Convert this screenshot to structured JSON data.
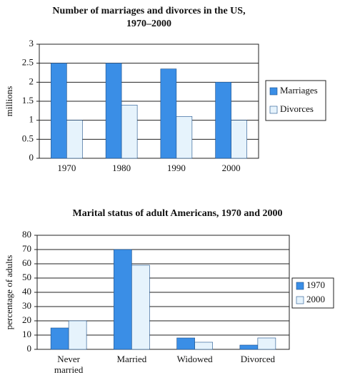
{
  "chart_data": [
    {
      "type": "bar",
      "title": [
        "Number of marriages and divorces in the US,",
        "1970–2000"
      ],
      "y_label": "millions",
      "categories": [
        "1970",
        "1980",
        "1990",
        "2000"
      ],
      "series": [
        {
          "name": "Marriages",
          "color": "#3a8ee6",
          "values": [
            2.5,
            2.5,
            2.35,
            2
          ]
        },
        {
          "name": "Divorces",
          "color": "#e6f3fc",
          "values": [
            1,
            1.4,
            1.1,
            1
          ]
        }
      ],
      "ylim": [
        0,
        3
      ],
      "yticks": [
        0,
        0.5,
        1,
        1.5,
        2,
        2.5,
        3
      ],
      "grid": true,
      "legend": "right"
    },
    {
      "type": "bar",
      "title": [
        "Marital status of adult Americans, 1970 and 2000"
      ],
      "y_label": "percentage of adults",
      "categories": [
        "Never married",
        "Married",
        "Widowed",
        "Divorced"
      ],
      "series": [
        {
          "name": "1970",
          "color": "#3a8ee6",
          "values": [
            15,
            70,
            8,
            3
          ]
        },
        {
          "name": "2000",
          "color": "#e6f3fc",
          "values": [
            20,
            59,
            5,
            8
          ]
        }
      ],
      "ylim": [
        0,
        80
      ],
      "yticks": [
        0,
        10,
        20,
        30,
        40,
        50,
        60,
        70,
        80
      ],
      "grid": true,
      "legend": "right"
    }
  ]
}
